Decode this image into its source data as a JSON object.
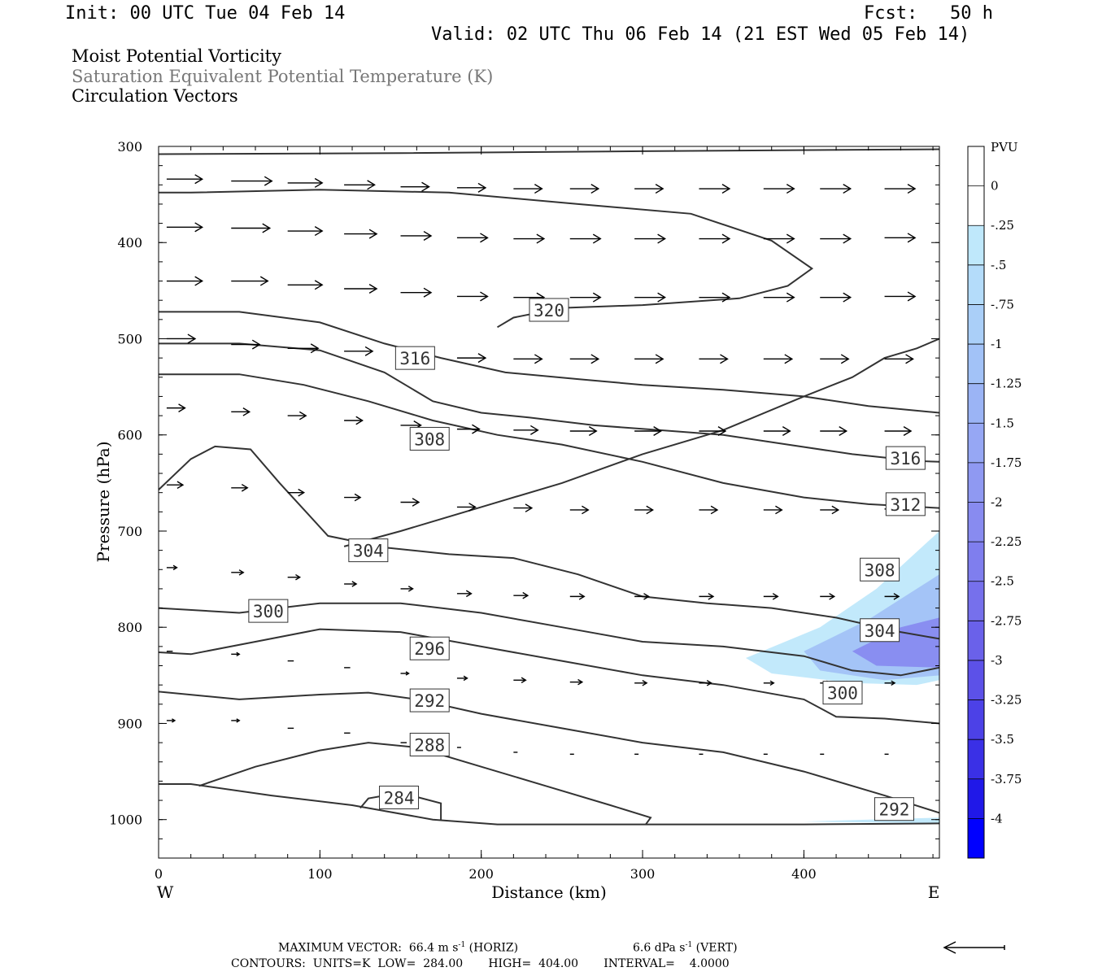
{
  "header": {
    "init": "Init: 00 UTC Tue 04 Feb 14",
    "fcst": "Fcst:   50 h",
    "valid": "Valid: 02 UTC Thu 06 Feb 14 (21 EST Wed 05 Feb 14)"
  },
  "fields": [
    "Moist Potential Vorticity",
    "Saturation Equivalent Potential Temperature (K)",
    "Circulation Vectors"
  ],
  "footer": {
    "max_vector": "MAXIMUM VECTOR:  66.4 m s",
    "max_vector_units": "-1",
    "max_vector_tail": " (HORIZ)",
    "vert_vector": "6.6 dPa s",
    "vert_vector_units": "-1",
    "vert_vector_tail": " (VERT)",
    "contours": "CONTOURS:  UNITS=K  LOW=  284.00       HIGH=  404.00       INTERVAL=    4.0000"
  },
  "colors": {
    "contour": "#333333",
    "vector": "#000000",
    "pv_light": "#bfe8fb",
    "pv_mid": "#9fb6f5",
    "pv_dark": "#8b8ef0"
  },
  "chart_data": {
    "type": "contour",
    "xlabel": "Distance (km)",
    "ylabel": "Pressure (hPa)",
    "xlim": [
      0,
      484
    ],
    "ylim": [
      1040,
      300
    ],
    "y_log": false,
    "x_ticks": [
      0,
      100,
      200,
      300,
      400
    ],
    "y_ticks": [
      300,
      400,
      500,
      600,
      700,
      800,
      900,
      1000
    ],
    "west_label": "W",
    "east_label": "E",
    "colorbar": {
      "units": "PVU",
      "levels": [
        "0",
        "-.25",
        "-.5",
        "-.75",
        "-1",
        "-1.25",
        "-1.5",
        "-1.75",
        "-2",
        "-2.25",
        "-2.5",
        "-2.75",
        "-3",
        "-3.25",
        "-3.5",
        "-3.75",
        "-4"
      ],
      "colors": [
        "#ffffff",
        "#ffffff",
        "#bfe8fb",
        "#b4dcfa",
        "#aacff8",
        "#a2c2f7",
        "#9bb4f5",
        "#96a7f4",
        "#8f99f2",
        "#888bf0",
        "#7f7eee",
        "#7670ec",
        "#6a61ea",
        "#5c51e8",
        "#4c41e7",
        "#3a30e6",
        "#2018e8",
        "#0000ff"
      ]
    },
    "theta_contours": [
      {
        "label": "320",
        "x": [
          210,
          220,
          250,
          300,
          360,
          390,
          405,
          380,
          330,
          260,
          180,
          100,
          20,
          0
        ],
        "y": [
          488,
          478,
          468,
          465,
          458,
          445,
          427,
          398,
          370,
          360,
          348,
          345,
          348,
          348
        ]
      },
      {
        "label": "316",
        "x": [
          0,
          50,
          100,
          140,
          175,
          215,
          260,
          300,
          350,
          400,
          440,
          484
        ],
        "y": [
          472,
          472,
          483,
          505,
          520,
          535,
          542,
          548,
          553,
          560,
          570,
          577
        ]
      },
      {
        "label": "316",
        "x": [
          0,
          50,
          100,
          140,
          170,
          200,
          230,
          270,
          310,
          350,
          390,
          430,
          470,
          484
        ],
        "y": [
          505,
          505,
          512,
          535,
          565,
          577,
          582,
          590,
          595,
          600,
          610,
          620,
          627,
          628
        ]
      },
      {
        "label": "312",
        "x": [
          0,
          50,
          90,
          130,
          170,
          210,
          250,
          300,
          350,
          400,
          440,
          484
        ],
        "y": [
          537,
          537,
          548,
          565,
          585,
          600,
          610,
          628,
          650,
          665,
          672,
          676
        ]
      },
      {
        "label": "308",
        "x": [
          0,
          20,
          35,
          57,
          75,
          105,
          140,
          180,
          220,
          260,
          300,
          340,
          380,
          420,
          460,
          484
        ],
        "y": [
          657,
          625,
          612,
          615,
          650,
          705,
          717,
          724,
          728,
          745,
          768,
          775,
          780,
          790,
          805,
          812
        ]
      },
      {
        "label": "304",
        "x": [
          115,
          150,
          200,
          250,
          300,
          350,
          400,
          430,
          450,
          470,
          484
        ],
        "y": [
          716,
          700,
          675,
          650,
          620,
          595,
          560,
          540,
          520,
          510,
          500
        ]
      },
      {
        "label": "300",
        "x": [
          0,
          50,
          100,
          150,
          200,
          250,
          300,
          350,
          400,
          430,
          460,
          484
        ],
        "y": [
          780,
          785,
          775,
          775,
          785,
          800,
          815,
          820,
          830,
          845,
          850,
          842
        ]
      },
      {
        "label": "296",
        "x": [
          0,
          20,
          60,
          100,
          150,
          200,
          250,
          300,
          350,
          400,
          420,
          450,
          484
        ],
        "y": [
          826,
          828,
          815,
          802,
          805,
          820,
          835,
          850,
          860,
          875,
          893,
          895,
          900
        ]
      },
      {
        "label": "292",
        "x": [
          0,
          50,
          100,
          130,
          160,
          200,
          250,
          300,
          350,
          400,
          450,
          484
        ],
        "y": [
          867,
          875,
          870,
          868,
          875,
          890,
          905,
          920,
          930,
          950,
          975,
          993
        ]
      },
      {
        "label": "288",
        "x": [
          25,
          60,
          100,
          130,
          160,
          200,
          240,
          280,
          305,
          302
        ],
        "y": [
          965,
          945,
          928,
          920,
          925,
          945,
          965,
          985,
          998,
          1005
        ]
      },
      {
        "label": "284",
        "x": [
          125,
          130,
          150,
          175,
          175
        ],
        "y": [
          988,
          978,
          972,
          983,
          1000
        ]
      },
      {
        "label": "surface",
        "x": [
          0,
          20,
          70,
          120,
          170,
          210,
          300,
          400,
          484
        ],
        "y": [
          963,
          963,
          975,
          985,
          1000,
          1005,
          1005,
          1005,
          1004
        ]
      },
      {
        "label": "top",
        "x": [
          0,
          150,
          300,
          484
        ],
        "y": [
          308,
          307,
          305,
          303
        ]
      }
    ],
    "contour_labels": [
      {
        "text": "320",
        "x": 242,
        "y": 470
      },
      {
        "text": "316",
        "x": 159,
        "y": 520
      },
      {
        "text": "308",
        "x": 168,
        "y": 604
      },
      {
        "text": "316",
        "x": 463,
        "y": 624
      },
      {
        "text": "312",
        "x": 463,
        "y": 672
      },
      {
        "text": "304",
        "x": 130,
        "y": 720
      },
      {
        "text": "308",
        "x": 447,
        "y": 740
      },
      {
        "text": "300",
        "x": 68,
        "y": 783
      },
      {
        "text": "304",
        "x": 447,
        "y": 803
      },
      {
        "text": "296",
        "x": 168,
        "y": 822
      },
      {
        "text": "300",
        "x": 424,
        "y": 868
      },
      {
        "text": "292",
        "x": 168,
        "y": 876
      },
      {
        "text": "288",
        "x": 168,
        "y": 922
      },
      {
        "text": "284",
        "x": 149,
        "y": 977
      },
      {
        "text": "292",
        "x": 456,
        "y": 989
      }
    ],
    "pv_regions": [
      {
        "level": "-.25",
        "x": [
          364,
          410,
          445,
          484,
          484,
          470,
          430,
          380
        ],
        "y": [
          832,
          800,
          760,
          700,
          855,
          860,
          858,
          848
        ]
      },
      {
        "level": "-1",
        "x": [
          400,
          440,
          470,
          484,
          484,
          450,
          410
        ],
        "y": [
          825,
          792,
          760,
          745,
          850,
          855,
          845
        ]
      },
      {
        "level": "-2",
        "x": [
          430,
          460,
          484,
          484,
          445
        ],
        "y": [
          825,
          800,
          790,
          842,
          840
        ]
      },
      {
        "level": "-.25",
        "x": [
          400,
          440,
          484,
          484
        ],
        "y": [
          1002,
          1000,
          998,
          1004
        ]
      }
    ],
    "vector_rows": [
      {
        "p": [
          335,
          340,
          345
        ],
        "x": [
          5,
          45,
          80,
          115,
          150,
          185,
          220,
          255,
          295,
          335,
          375,
          410,
          450
        ],
        "u": [
          35,
          40,
          34,
          30,
          28,
          28,
          28,
          28,
          28,
          30,
          30,
          30,
          30
        ],
        "w": [
          0,
          0,
          0,
          0,
          0,
          0,
          0,
          0,
          0,
          0,
          0,
          0,
          0
        ],
        "pp": [
          334,
          336,
          338,
          340,
          342,
          343,
          344,
          344,
          344,
          344,
          344,
          344,
          344
        ]
      },
      {
        "p": [
          385
        ],
        "x": [
          5,
          45,
          80,
          115,
          150,
          185,
          220,
          255,
          295,
          335,
          375,
          410,
          450
        ],
        "u": [
          35,
          38,
          34,
          32,
          30,
          30,
          30,
          30,
          30,
          30,
          30,
          30,
          30
        ],
        "w": [
          0,
          0,
          0,
          0,
          0,
          0,
          0,
          0,
          0,
          0,
          0,
          0,
          0
        ],
        "pp": [
          384,
          385,
          388,
          391,
          393,
          395,
          396,
          396,
          396,
          396,
          396,
          396,
          395
        ]
      },
      {
        "p": [
          440
        ],
        "x": [
          5,
          45,
          80,
          115,
          150,
          185,
          220,
          255,
          295,
          335,
          375,
          410,
          450
        ],
        "u": [
          35,
          36,
          34,
          32,
          30,
          30,
          30,
          30,
          30,
          30,
          30,
          30,
          30
        ],
        "w": [
          0,
          0,
          0,
          0,
          0,
          0,
          0,
          0,
          0,
          0,
          0,
          0,
          0
        ],
        "pp": [
          440,
          440,
          444,
          448,
          452,
          456,
          457,
          457,
          457,
          457,
          457,
          457,
          456
        ]
      },
      {
        "p": [
          505
        ],
        "x": [
          5,
          45,
          80,
          115,
          150,
          185,
          220,
          255,
          295,
          335,
          375,
          410,
          450
        ],
        "u": [
          28,
          28,
          30,
          28,
          28,
          28,
          28,
          28,
          28,
          28,
          28,
          28,
          28
        ],
        "w": [
          0,
          0,
          0,
          0,
          0,
          0,
          0,
          0,
          0,
          0,
          0,
          0,
          0
        ],
        "pp": [
          500,
          506,
          510,
          513,
          515,
          520,
          521,
          521,
          521,
          521,
          521,
          521,
          521
        ]
      },
      {
        "p": [
          575
        ],
        "x": [
          5,
          45,
          80,
          115,
          150,
          185,
          220,
          255,
          295,
          335,
          375,
          410,
          450
        ],
        "u": [
          18,
          18,
          18,
          18,
          20,
          22,
          24,
          26,
          26,
          26,
          26,
          26,
          26
        ],
        "w": [
          0,
          0,
          0,
          0,
          0,
          0,
          0,
          0,
          0,
          0,
          0,
          0,
          0
        ],
        "pp": [
          572,
          576,
          580,
          585,
          590,
          594,
          595,
          596,
          596,
          596,
          596,
          596,
          596
        ]
      },
      {
        "p": [
          655
        ],
        "x": [
          5,
          45,
          80,
          115,
          150,
          185,
          220,
          255,
          295,
          335,
          375,
          410,
          450
        ],
        "u": [
          16,
          16,
          16,
          16,
          18,
          18,
          18,
          18,
          18,
          18,
          18,
          18,
          18
        ],
        "w": [
          0,
          0,
          0,
          0,
          0,
          0,
          0,
          0,
          0,
          0,
          0,
          0,
          0
        ],
        "pp": [
          652,
          655,
          660,
          665,
          670,
          675,
          676,
          678,
          678,
          678,
          678,
          678,
          677
        ]
      },
      {
        "p": [
          740
        ],
        "x": [
          5,
          45,
          80,
          115,
          150,
          185,
          220,
          255,
          295,
          335,
          375,
          410,
          450
        ],
        "u": [
          10,
          12,
          12,
          12,
          12,
          14,
          14,
          14,
          14,
          14,
          14,
          14,
          14
        ],
        "w": [
          0,
          0,
          0,
          0,
          0,
          0,
          0,
          0,
          0,
          0,
          0,
          0,
          0
        ],
        "pp": [
          738,
          743,
          748,
          755,
          760,
          765,
          767,
          768,
          768,
          768,
          768,
          768,
          768
        ]
      },
      {
        "p": [
          820
        ],
        "x": [
          5,
          45,
          80,
          115,
          150,
          185,
          220,
          255,
          295,
          335,
          375,
          410,
          450
        ],
        "u": [
          6,
          8,
          6,
          6,
          8,
          10,
          12,
          12,
          12,
          12,
          10,
          10,
          10
        ],
        "w": [
          0,
          0,
          0,
          0,
          0,
          0,
          0,
          0,
          0,
          0,
          0,
          0,
          0
        ],
        "pp": [
          825,
          828,
          835,
          842,
          848,
          853,
          855,
          857,
          858,
          858,
          858,
          858,
          858
        ]
      },
      {
        "p": [
          900
        ],
        "x": [
          5,
          45,
          80,
          115,
          150,
          185,
          220,
          255,
          295,
          335,
          375,
          410,
          450
        ],
        "u": [
          8,
          8,
          6,
          6,
          6,
          4,
          4,
          4,
          4,
          4,
          4,
          4,
          4
        ],
        "w": [
          0,
          0,
          0,
          0,
          0,
          0,
          0,
          0,
          0,
          0,
          0,
          0,
          0
        ],
        "pp": [
          897,
          897,
          905,
          910,
          920,
          925,
          930,
          932,
          932,
          932,
          932,
          932,
          932
        ]
      }
    ]
  }
}
